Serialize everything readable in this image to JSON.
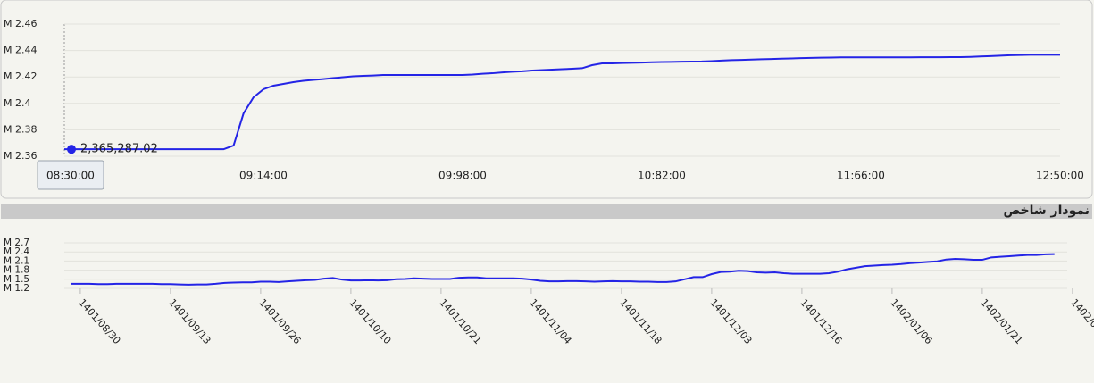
{
  "chart_data": [
    {
      "type": "line",
      "categories": [
        "08:30:00",
        null,
        null,
        null,
        null,
        null,
        null,
        null,
        null,
        null,
        null,
        null,
        null,
        null,
        null,
        null,
        null,
        null,
        null,
        null,
        "09:14:00",
        null,
        null,
        null,
        null,
        null,
        null,
        null,
        null,
        null,
        null,
        null,
        null,
        null,
        null,
        null,
        null,
        null,
        null,
        null,
        "09:98:00",
        null,
        null,
        null,
        null,
        null,
        null,
        null,
        null,
        null,
        null,
        null,
        null,
        null,
        null,
        null,
        null,
        null,
        null,
        null,
        "10:82:00",
        null,
        null,
        null,
        null,
        null,
        null,
        null,
        null,
        null,
        null,
        null,
        null,
        null,
        null,
        null,
        null,
        null,
        null,
        null,
        "11:66:00",
        null,
        null,
        null,
        null,
        null,
        null,
        null,
        null,
        null,
        null,
        null,
        null,
        null,
        null,
        null,
        null,
        null,
        null,
        null,
        "12:50:00"
      ],
      "series": [
        {
          "color": "#2424e6",
          "values": [
            2.36528702,
            2.3653,
            2.3653,
            2.3653,
            2.3653,
            2.3653,
            2.3653,
            2.3653,
            2.3653,
            2.3653,
            2.3653,
            2.3653,
            2.3653,
            2.3653,
            2.3653,
            2.3653,
            2.3653,
            2.3681,
            2.3924,
            2.4046,
            2.4107,
            2.4134,
            2.4147,
            2.4161,
            2.4171,
            2.4178,
            2.4184,
            2.4191,
            2.4198,
            2.4205,
            2.4208,
            2.4211,
            2.4215,
            2.4215,
            2.4215,
            2.4215,
            2.4215,
            2.4215,
            2.4215,
            2.4215,
            2.4215,
            2.4218,
            2.4224,
            2.4228,
            2.4234,
            2.4239,
            2.4243,
            2.4249,
            2.4252,
            2.4255,
            2.4259,
            2.4262,
            2.4266,
            2.4289,
            2.4303,
            2.4303,
            2.4305,
            2.4307,
            2.4309,
            2.4311,
            2.4313,
            2.4314,
            2.4315,
            2.4316,
            2.4317,
            2.432,
            2.4324,
            2.4327,
            2.4329,
            2.4331,
            2.4334,
            2.4336,
            2.4338,
            2.434,
            2.4342,
            2.4344,
            2.4346,
            2.4347,
            2.4348,
            2.4348,
            2.4348,
            2.4348,
            2.4348,
            2.4348,
            2.4348,
            2.4348,
            2.4349,
            2.4349,
            2.4349,
            2.435,
            2.435,
            2.4352,
            2.4355,
            2.4358,
            2.4361,
            2.4364,
            2.4366,
            2.4368,
            2.4368,
            2.4368,
            2.4368
          ],
          "value_labels": [
            "2,365,287.02",
            null,
            null,
            null,
            null,
            null,
            null,
            null,
            null,
            null,
            null,
            null,
            null,
            null,
            null,
            null,
            null,
            null,
            null,
            null,
            null,
            null,
            null,
            null,
            null,
            null,
            null,
            null,
            null,
            null,
            null,
            null,
            null,
            null,
            null,
            null,
            null,
            null,
            null,
            null,
            null,
            null,
            null,
            null,
            null,
            null,
            null,
            null,
            null,
            null,
            null,
            null,
            null,
            null,
            null,
            null,
            null,
            null,
            null,
            null,
            null,
            null,
            null,
            null,
            null,
            null,
            null,
            null,
            null,
            null,
            null,
            null,
            null,
            null,
            null,
            null,
            null,
            null,
            null,
            null,
            null,
            null,
            null,
            null,
            null,
            null,
            null,
            null,
            null,
            null,
            null,
            null,
            null,
            null,
            null,
            null,
            null,
            null,
            null,
            null,
            null
          ]
        }
      ],
      "ylim": [
        2.36,
        2.46
      ],
      "yticks": [
        {
          "value": 2.36,
          "label": "M 2.36"
        },
        {
          "value": 2.38,
          "label": "M 2.38"
        },
        {
          "value": 2.4,
          "label": "M 2.4"
        },
        {
          "value": 2.42,
          "label": "M 2.42"
        },
        {
          "value": 2.44,
          "label": "M 2.44"
        },
        {
          "value": 2.46,
          "label": "M 2.46"
        }
      ],
      "grid": true
    },
    {
      "type": "line",
      "title": "نمودار شاخص",
      "categories": [
        null,
        "1401/08/30",
        null,
        null,
        null,
        null,
        null,
        null,
        null,
        null,
        null,
        "1401/09/13",
        null,
        null,
        null,
        null,
        null,
        null,
        null,
        null,
        null,
        "1401/09/26",
        null,
        null,
        null,
        null,
        null,
        null,
        null,
        null,
        null,
        "1401/10/10",
        null,
        null,
        null,
        null,
        null,
        null,
        null,
        null,
        null,
        "1401/10/21",
        null,
        null,
        null,
        null,
        null,
        null,
        null,
        null,
        null,
        "1401/11/04",
        null,
        null,
        null,
        null,
        null,
        null,
        null,
        null,
        null,
        "1401/11/18",
        null,
        null,
        null,
        null,
        null,
        null,
        null,
        null,
        null,
        "1401/12/03",
        null,
        null,
        null,
        null,
        null,
        null,
        null,
        null,
        null,
        "1401/12/16",
        null,
        null,
        null,
        null,
        null,
        null,
        null,
        null,
        null,
        "1402/01/06",
        null,
        null,
        null,
        null,
        null,
        null,
        null,
        null,
        null,
        "1402/01/21",
        null,
        null,
        null,
        null,
        null,
        null,
        null,
        null,
        null,
        "1402/0"
      ],
      "series": [
        {
          "color": "#2424e6",
          "values": [
            1.35,
            1.35,
            1.35,
            1.34,
            1.34,
            1.35,
            1.35,
            1.35,
            1.35,
            1.35,
            1.34,
            1.34,
            1.33,
            1.32,
            1.33,
            1.33,
            1.35,
            1.38,
            1.39,
            1.4,
            1.4,
            1.42,
            1.42,
            1.41,
            1.43,
            1.45,
            1.47,
            1.48,
            1.52,
            1.54,
            1.49,
            1.46,
            1.46,
            1.47,
            1.46,
            1.47,
            1.5,
            1.51,
            1.53,
            1.52,
            1.51,
            1.51,
            1.51,
            1.55,
            1.56,
            1.56,
            1.53,
            1.53,
            1.53,
            1.53,
            1.52,
            1.49,
            1.45,
            1.43,
            1.43,
            1.44,
            1.44,
            1.43,
            1.42,
            1.43,
            1.44,
            1.43,
            1.43,
            1.42,
            1.42,
            1.41,
            1.41,
            1.43,
            1.5,
            1.57,
            1.57,
            1.67,
            1.74,
            1.75,
            1.78,
            1.77,
            1.73,
            1.72,
            1.73,
            1.7,
            1.68,
            1.68,
            1.68,
            1.68,
            1.7,
            1.75,
            1.83,
            1.88,
            1.93,
            1.95,
            1.97,
            1.98,
            2.0,
            2.03,
            2.05,
            2.07,
            2.09,
            2.15,
            2.17,
            2.16,
            2.14,
            2.14,
            2.22,
            2.24,
            2.26,
            2.28,
            2.3,
            2.3,
            2.32,
            2.33,
            null,
            null
          ]
        }
      ],
      "ylim": [
        1.2,
        2.7
      ],
      "yticks": [
        {
          "value": 1.2,
          "label": "M 1.2"
        },
        {
          "value": 1.5,
          "label": "M 1.5"
        },
        {
          "value": 1.8,
          "label": "M 1.8"
        },
        {
          "value": 2.1,
          "label": "M 2.1"
        },
        {
          "value": 2.4,
          "label": "M 2.4"
        },
        {
          "value": 2.7,
          "label": "M 2.7"
        }
      ],
      "grid": true
    }
  ]
}
